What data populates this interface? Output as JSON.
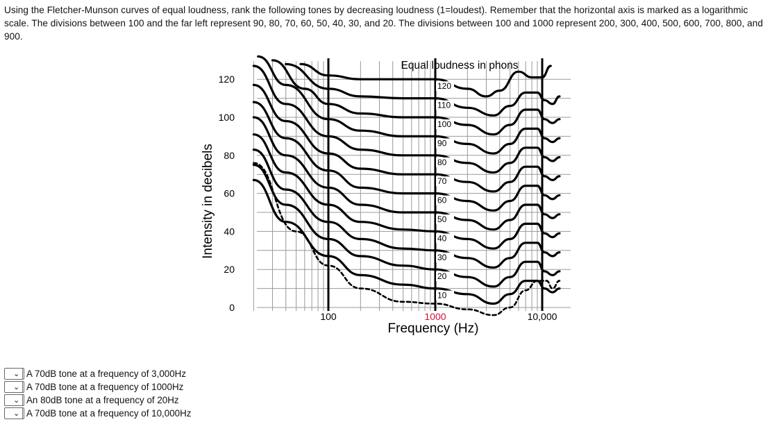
{
  "question": {
    "text": "Using the Fletcher-Munson curves of equal loudness, rank the following tones by decreasing loudness (1=loudest). Remember that the horizontal axis is marked as a logarithmic scale. The divisions between 100 and the far left represent 90, 80, 70, 60, 50, 40, 30, and 20. The divisions between 100 and 1000 represent 200, 300, 400, 500, 600, 700, 800, and 900."
  },
  "chart_data": {
    "type": "line",
    "title": "Equal loudness in phons",
    "xlabel": "Frequency (Hz)",
    "ylabel": "Intensity in decibels",
    "x_scale": "log",
    "xlim": [
      20,
      15000
    ],
    "ylim": [
      0,
      125
    ],
    "x_ticks": [
      {
        "value": 100,
        "label": "100",
        "color": "#000000"
      },
      {
        "value": 1000,
        "label": "1000",
        "color": "#d0103a"
      },
      {
        "value": 10000,
        "label": "10,000",
        "color": "#000000"
      }
    ],
    "y_ticks": [
      0,
      20,
      40,
      60,
      80,
      100,
      120
    ],
    "grid": true,
    "series": [
      {
        "name": "120",
        "style": "solid",
        "points": [
          [
            55,
            128
          ],
          [
            100,
            122
          ],
          [
            200,
            120
          ],
          [
            500,
            120
          ],
          [
            1000,
            120
          ],
          [
            2000,
            115
          ],
          [
            3000,
            111
          ],
          [
            4000,
            114
          ],
          [
            6000,
            124
          ],
          [
            8000,
            121
          ],
          [
            10000,
            121
          ],
          [
            12000,
            127
          ]
        ]
      },
      {
        "name": "110",
        "style": "solid",
        "points": [
          [
            40,
            128
          ],
          [
            100,
            115
          ],
          [
            200,
            111
          ],
          [
            500,
            110
          ],
          [
            1000,
            110
          ],
          [
            2000,
            105
          ],
          [
            3500,
            101
          ],
          [
            5000,
            106
          ],
          [
            7000,
            113
          ],
          [
            9000,
            113
          ],
          [
            10500,
            109
          ],
          [
            12500,
            107
          ],
          [
            14500,
            111
          ]
        ]
      },
      {
        "name": "100",
        "style": "solid",
        "points": [
          [
            30,
            130
          ],
          [
            60,
            115
          ],
          [
            100,
            107
          ],
          [
            200,
            102
          ],
          [
            500,
            100
          ],
          [
            1000,
            100
          ],
          [
            2000,
            96
          ],
          [
            3500,
            91
          ],
          [
            5000,
            96
          ],
          [
            7000,
            104
          ],
          [
            9000,
            104
          ],
          [
            10500,
            99
          ],
          [
            12500,
            97
          ],
          [
            14500,
            99
          ]
        ]
      },
      {
        "name": "90",
        "style": "solid",
        "points": [
          [
            22,
            132
          ],
          [
            40,
            117
          ],
          [
            100,
            99
          ],
          [
            200,
            93
          ],
          [
            500,
            90
          ],
          [
            1000,
            90
          ],
          [
            2000,
            86
          ],
          [
            3500,
            81
          ],
          [
            5000,
            86
          ],
          [
            7000,
            94
          ],
          [
            9000,
            94
          ],
          [
            10500,
            89
          ],
          [
            12500,
            87
          ],
          [
            14500,
            89
          ]
        ]
      },
      {
        "name": "80",
        "style": "solid",
        "points": [
          [
            20,
            127
          ],
          [
            40,
            107
          ],
          [
            100,
            90
          ],
          [
            200,
            83
          ],
          [
            500,
            80
          ],
          [
            1000,
            80
          ],
          [
            2000,
            76
          ],
          [
            3500,
            71
          ],
          [
            5000,
            76
          ],
          [
            7000,
            84
          ],
          [
            9000,
            84
          ],
          [
            10500,
            79
          ],
          [
            12500,
            77
          ],
          [
            14500,
            79
          ]
        ]
      },
      {
        "name": "70",
        "style": "solid",
        "points": [
          [
            20,
            117
          ],
          [
            40,
            98
          ],
          [
            100,
            81
          ],
          [
            200,
            73
          ],
          [
            500,
            70
          ],
          [
            1000,
            70
          ],
          [
            2000,
            66
          ],
          [
            3500,
            61
          ],
          [
            5000,
            66
          ],
          [
            7000,
            74
          ],
          [
            9000,
            74
          ],
          [
            10500,
            69
          ],
          [
            12500,
            67
          ],
          [
            14500,
            69
          ]
        ]
      },
      {
        "name": "60",
        "style": "solid",
        "points": [
          [
            20,
            108
          ],
          [
            40,
            89
          ],
          [
            100,
            72
          ],
          [
            200,
            63
          ],
          [
            500,
            60
          ],
          [
            1000,
            60
          ],
          [
            2000,
            56
          ],
          [
            3500,
            51
          ],
          [
            5000,
            56
          ],
          [
            7000,
            64
          ],
          [
            9000,
            64
          ],
          [
            10500,
            59
          ],
          [
            12500,
            57
          ],
          [
            14500,
            59
          ]
        ]
      },
      {
        "name": "50",
        "style": "solid",
        "points": [
          [
            20,
            100
          ],
          [
            40,
            80
          ],
          [
            100,
            63
          ],
          [
            200,
            54
          ],
          [
            500,
            50
          ],
          [
            1000,
            50
          ],
          [
            2000,
            46
          ],
          [
            3500,
            41
          ],
          [
            5000,
            46
          ],
          [
            7000,
            54
          ],
          [
            9000,
            54
          ],
          [
            10500,
            49
          ],
          [
            12500,
            47
          ],
          [
            14500,
            49
          ]
        ]
      },
      {
        "name": "40",
        "style": "solid",
        "points": [
          [
            20,
            91
          ],
          [
            40,
            71
          ],
          [
            100,
            54
          ],
          [
            200,
            45
          ],
          [
            500,
            41
          ],
          [
            1000,
            40
          ],
          [
            2000,
            36
          ],
          [
            3500,
            31
          ],
          [
            5000,
            36
          ],
          [
            7000,
            44
          ],
          [
            9000,
            44
          ],
          [
            10500,
            39
          ],
          [
            12500,
            37
          ],
          [
            14500,
            39
          ]
        ]
      },
      {
        "name": "30",
        "style": "solid",
        "points": [
          [
            20,
            83
          ],
          [
            40,
            62
          ],
          [
            100,
            45
          ],
          [
            200,
            36
          ],
          [
            500,
            31
          ],
          [
            1000,
            30
          ],
          [
            2000,
            26
          ],
          [
            3500,
            21
          ],
          [
            5000,
            26
          ],
          [
            7000,
            34
          ],
          [
            9000,
            34
          ],
          [
            10500,
            29
          ],
          [
            12500,
            27
          ],
          [
            14500,
            29
          ]
        ]
      },
      {
        "name": "20",
        "style": "solid",
        "points": [
          [
            20,
            75
          ],
          [
            40,
            54
          ],
          [
            100,
            36
          ],
          [
            200,
            27
          ],
          [
            500,
            22
          ],
          [
            1000,
            20
          ],
          [
            2000,
            16
          ],
          [
            3500,
            11
          ],
          [
            5000,
            16
          ],
          [
            7000,
            24
          ],
          [
            9000,
            24
          ],
          [
            10500,
            19
          ],
          [
            12500,
            17
          ],
          [
            14500,
            19
          ]
        ]
      },
      {
        "name": "10",
        "style": "solid",
        "points": [
          [
            20,
            67
          ],
          [
            40,
            45
          ],
          [
            100,
            27
          ],
          [
            200,
            17
          ],
          [
            500,
            12
          ],
          [
            1000,
            10
          ],
          [
            2000,
            7
          ],
          [
            3500,
            2
          ],
          [
            5000,
            7
          ],
          [
            7000,
            14
          ],
          [
            9000,
            14
          ],
          [
            10500,
            10
          ],
          [
            12500,
            8
          ],
          [
            14500,
            10
          ]
        ]
      },
      {
        "name": "",
        "style": "dashed",
        "points": [
          [
            20,
            76
          ],
          [
            50,
            40
          ],
          [
            100,
            22
          ],
          [
            200,
            10
          ],
          [
            500,
            3
          ],
          [
            1000,
            2
          ],
          [
            2000,
            -1
          ],
          [
            3500,
            -4
          ],
          [
            5000,
            0
          ],
          [
            7000,
            9
          ],
          [
            9000,
            14
          ],
          [
            11000,
            14
          ],
          [
            12500,
            10
          ],
          [
            14500,
            14
          ]
        ]
      }
    ]
  },
  "answers": [
    {
      "selected": "",
      "label": "A 70dB tone at a frequency of 3,000Hz"
    },
    {
      "selected": "",
      "label": "A 70dB tone at a frequency of 1000Hz"
    },
    {
      "selected": "",
      "label": "An 80dB tone at a frequency of 20Hz"
    },
    {
      "selected": "",
      "label": "A 70dB tone at a frequency of 10,000Hz"
    }
  ],
  "icons": {
    "dropdown": "chevron-down-icon"
  }
}
